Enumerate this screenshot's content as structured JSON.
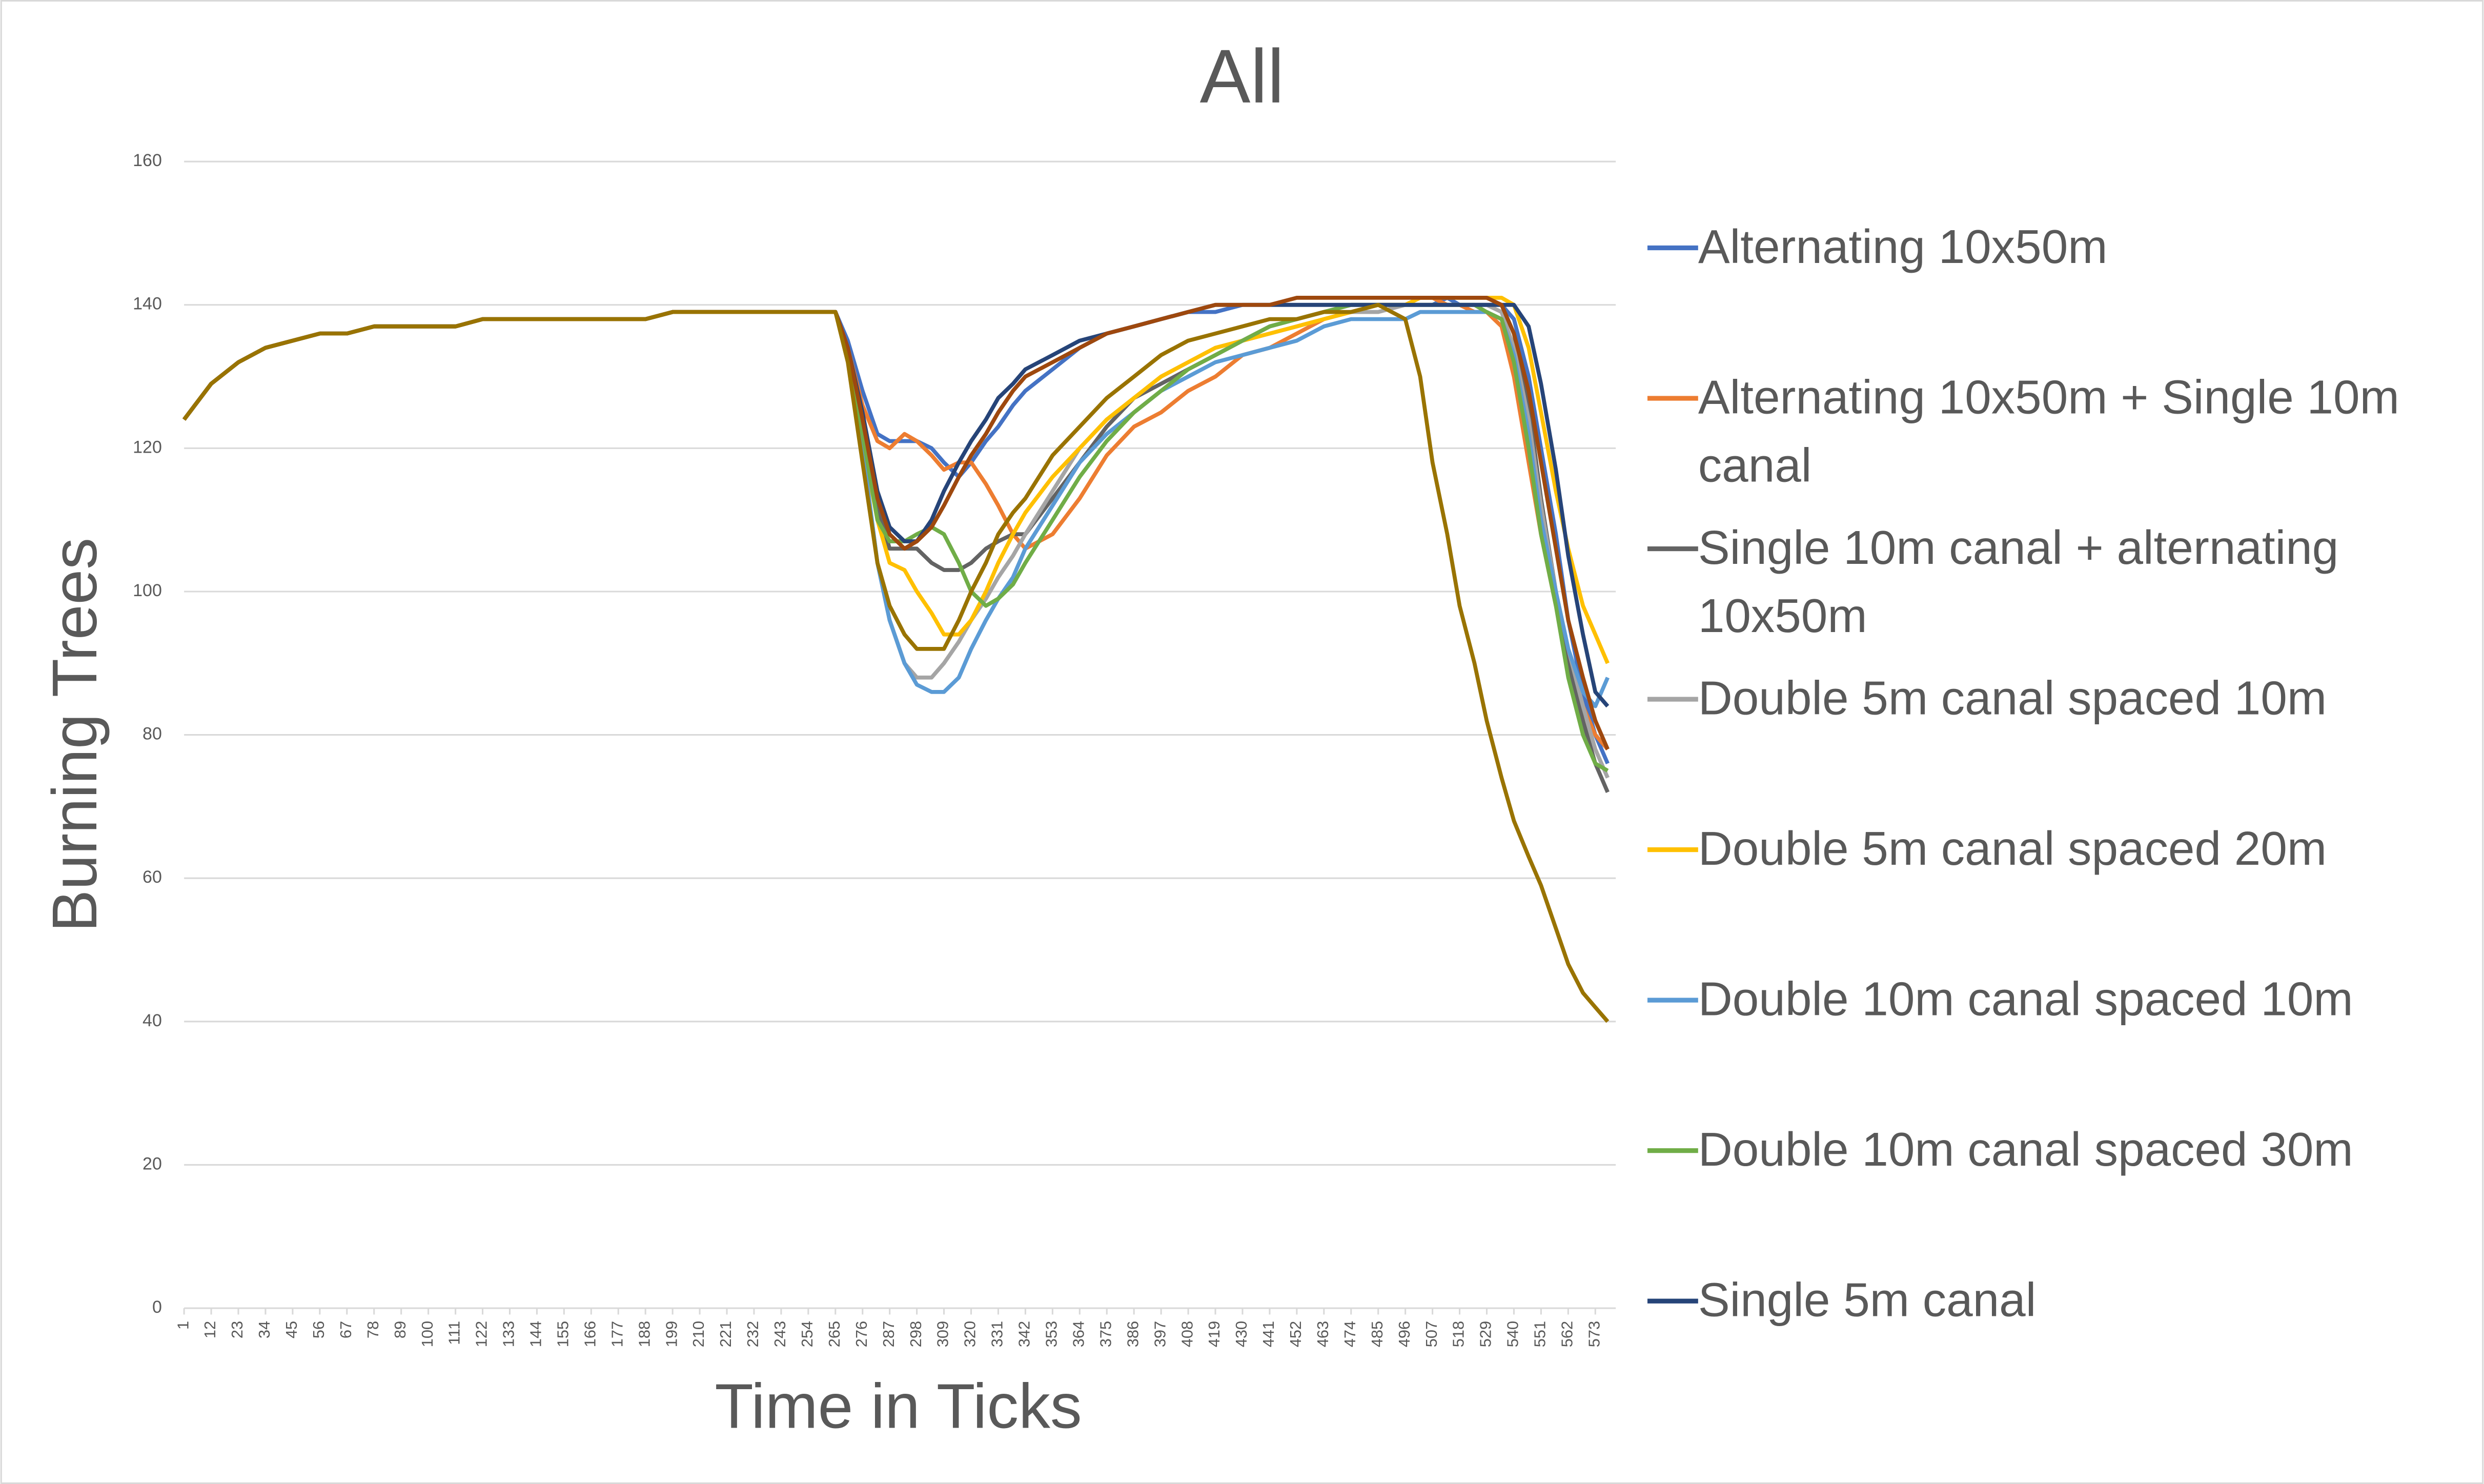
{
  "chart_data": {
    "type": "line",
    "title": "All",
    "x_label": "Time in Ticks",
    "y_label": "Burning Trees",
    "x": [
      1,
      12,
      23,
      34,
      45,
      56,
      67,
      78,
      89,
      100,
      111,
      122,
      133,
      144,
      155,
      166,
      177,
      188,
      199,
      210,
      221,
      232,
      243,
      254,
      265,
      270,
      276,
      282,
      287,
      293,
      298,
      304,
      309,
      315,
      320,
      326,
      331,
      337,
      342,
      353,
      364,
      375,
      386,
      397,
      408,
      419,
      430,
      441,
      452,
      463,
      474,
      485,
      496,
      502,
      507,
      513,
      518,
      524,
      529,
      535,
      540,
      546,
      551,
      557,
      562,
      568,
      573,
      578
    ],
    "xlim": [
      1,
      580
    ],
    "xticks": [
      1,
      12,
      23,
      34,
      45,
      56,
      67,
      78,
      89,
      100,
      111,
      122,
      133,
      144,
      155,
      166,
      177,
      188,
      199,
      210,
      221,
      232,
      243,
      254,
      265,
      276,
      287,
      298,
      309,
      320,
      331,
      342,
      353,
      364,
      375,
      386,
      397,
      408,
      419,
      430,
      441,
      452,
      463,
      474,
      485,
      496,
      507,
      518,
      529,
      540,
      551,
      562,
      573
    ],
    "ylim": [
      0,
      160
    ],
    "yticks": [
      0,
      20,
      40,
      60,
      80,
      100,
      120,
      140,
      160
    ],
    "grid": true,
    "series": [
      {
        "name": "Alternating 10x50m",
        "color": "#4472c4",
        "values": [
          124,
          129,
          132,
          134,
          135,
          136,
          136,
          137,
          137,
          137,
          137,
          138,
          138,
          138,
          138,
          138,
          138,
          138,
          139,
          139,
          139,
          139,
          139,
          139,
          139,
          135,
          128,
          122,
          121,
          121,
          121,
          120,
          118,
          116,
          118,
          121,
          123,
          126,
          128,
          131,
          134,
          136,
          137,
          138,
          139,
          139,
          140,
          140,
          140,
          140,
          140,
          140,
          140,
          140,
          140,
          141,
          140,
          140,
          140,
          140,
          138,
          130,
          120,
          108,
          96,
          86,
          80,
          76
        ]
      },
      {
        "name": "Alternating 10x50m + Single 10m canal",
        "color": "#ed7d31",
        "values": [
          124,
          129,
          132,
          134,
          135,
          136,
          136,
          137,
          137,
          137,
          137,
          138,
          138,
          138,
          138,
          138,
          138,
          138,
          139,
          139,
          139,
          139,
          139,
          139,
          139,
          134,
          126,
          121,
          120,
          122,
          121,
          119,
          117,
          118,
          118,
          115,
          112,
          108,
          106,
          108,
          113,
          119,
          123,
          125,
          128,
          130,
          133,
          134,
          136,
          138,
          139,
          140,
          140,
          141,
          141,
          140,
          140,
          139,
          139,
          137,
          130,
          118,
          108,
          98,
          90,
          84,
          80,
          78
        ]
      },
      {
        "name": "Single 10m canal + alternating 10x50m",
        "color": "#636363",
        "values": [
          124,
          129,
          132,
          134,
          135,
          136,
          136,
          137,
          137,
          137,
          137,
          138,
          138,
          138,
          138,
          138,
          138,
          138,
          139,
          139,
          139,
          139,
          139,
          139,
          139,
          134,
          124,
          112,
          106,
          106,
          106,
          104,
          103,
          103,
          104,
          106,
          107,
          108,
          108,
          113,
          118,
          123,
          127,
          129,
          131,
          133,
          135,
          137,
          138,
          139,
          140,
          140,
          140,
          140,
          140,
          140,
          140,
          140,
          140,
          140,
          136,
          126,
          113,
          100,
          90,
          82,
          76,
          72
        ]
      },
      {
        "name": "Double 5m canal spaced 10m",
        "color": "#a5a5a5",
        "values": [
          124,
          129,
          132,
          134,
          135,
          136,
          136,
          137,
          137,
          137,
          137,
          138,
          138,
          138,
          138,
          138,
          138,
          138,
          139,
          139,
          139,
          139,
          139,
          139,
          139,
          133,
          120,
          104,
          96,
          90,
          88,
          88,
          90,
          93,
          96,
          99,
          102,
          105,
          108,
          114,
          120,
          124,
          127,
          130,
          132,
          134,
          135,
          136,
          137,
          138,
          139,
          139,
          140,
          140,
          140,
          140,
          140,
          140,
          140,
          139,
          134,
          124,
          112,
          100,
          92,
          84,
          78,
          74
        ]
      },
      {
        "name": "Double 5m canal spaced 20m",
        "color": "#ffc000",
        "values": [
          124,
          129,
          132,
          134,
          135,
          136,
          136,
          137,
          137,
          137,
          137,
          138,
          138,
          138,
          138,
          138,
          138,
          138,
          139,
          139,
          139,
          139,
          139,
          139,
          139,
          133,
          121,
          110,
          104,
          103,
          100,
          97,
          94,
          94,
          96,
          100,
          104,
          108,
          111,
          116,
          120,
          124,
          127,
          130,
          132,
          134,
          135,
          136,
          137,
          138,
          139,
          140,
          140,
          141,
          141,
          141,
          141,
          141,
          141,
          141,
          140,
          134,
          125,
          114,
          106,
          98,
          94,
          90
        ]
      },
      {
        "name": "Double 10m canal spaced 10m",
        "color": "#5b9bd5",
        "values": [
          124,
          129,
          132,
          134,
          135,
          136,
          136,
          137,
          137,
          137,
          137,
          138,
          138,
          138,
          138,
          138,
          138,
          138,
          139,
          139,
          139,
          139,
          139,
          139,
          139,
          133,
          120,
          104,
          96,
          90,
          87,
          86,
          86,
          88,
          92,
          96,
          99,
          102,
          106,
          112,
          118,
          122,
          125,
          128,
          130,
          132,
          133,
          134,
          135,
          137,
          138,
          138,
          138,
          139,
          139,
          139,
          139,
          139,
          139,
          138,
          133,
          122,
          110,
          100,
          92,
          86,
          84,
          88
        ]
      },
      {
        "name": "Double 10m canal spaced 30m",
        "color": "#70ad47",
        "values": [
          124,
          129,
          132,
          134,
          135,
          136,
          136,
          137,
          137,
          137,
          137,
          138,
          138,
          138,
          138,
          138,
          138,
          138,
          139,
          139,
          139,
          139,
          139,
          139,
          139,
          133,
          122,
          110,
          107,
          107,
          108,
          109,
          108,
          104,
          100,
          98,
          99,
          101,
          104,
          110,
          116,
          121,
          125,
          128,
          131,
          133,
          135,
          137,
          138,
          139,
          140,
          140,
          140,
          140,
          140,
          140,
          140,
          140,
          139,
          138,
          132,
          120,
          108,
          98,
          88,
          80,
          76,
          75
        ]
      },
      {
        "name": "Single 5m canal",
        "color": "#264478",
        "values": [
          124,
          129,
          132,
          134,
          135,
          136,
          136,
          137,
          137,
          137,
          137,
          138,
          138,
          138,
          138,
          138,
          138,
          138,
          139,
          139,
          139,
          139,
          139,
          139,
          139,
          134,
          125,
          114,
          109,
          107,
          107,
          110,
          114,
          118,
          121,
          124,
          127,
          129,
          131,
          133,
          135,
          136,
          137,
          138,
          139,
          140,
          140,
          140,
          140,
          140,
          140,
          140,
          140,
          140,
          140,
          140,
          140,
          140,
          140,
          140,
          140,
          137,
          129,
          117,
          105,
          94,
          86,
          84
        ]
      },
      {
        "color": "#9e480e",
        "values": [
          124,
          129,
          132,
          134,
          135,
          136,
          136,
          137,
          137,
          137,
          137,
          138,
          138,
          138,
          138,
          138,
          138,
          138,
          139,
          139,
          139,
          139,
          139,
          139,
          139,
          134,
          124,
          113,
          108,
          106,
          107,
          109,
          112,
          116,
          119,
          122,
          125,
          128,
          130,
          132,
          134,
          136,
          137,
          138,
          139,
          140,
          140,
          140,
          141,
          141,
          141,
          141,
          141,
          141,
          141,
          141,
          141,
          141,
          141,
          140,
          136,
          128,
          118,
          106,
          96,
          88,
          82,
          78
        ]
      },
      {
        "color": "#997300",
        "values": [
          124,
          129,
          132,
          134,
          135,
          136,
          136,
          137,
          137,
          137,
          137,
          138,
          138,
          138,
          138,
          138,
          138,
          138,
          139,
          139,
          139,
          139,
          139,
          139,
          139,
          132,
          118,
          104,
          98,
          94,
          92,
          92,
          92,
          96,
          100,
          104,
          108,
          111,
          113,
          119,
          123,
          127,
          130,
          133,
          135,
          136,
          137,
          138,
          138,
          139,
          139,
          140,
          138,
          130,
          118,
          108,
          98,
          90,
          82,
          74,
          68,
          63,
          59,
          53,
          48,
          44,
          42,
          40
        ]
      }
    ]
  }
}
